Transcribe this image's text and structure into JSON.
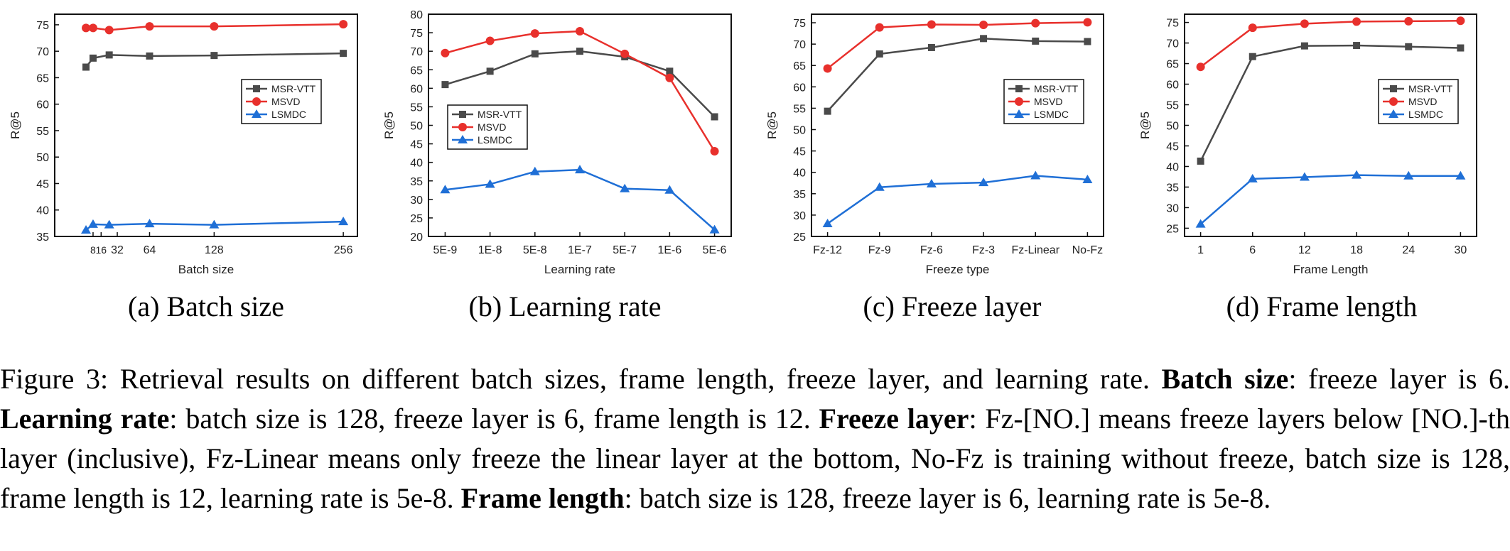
{
  "figure": {
    "subcaptions": [
      "(a) Batch size",
      "(b) Learning rate",
      "(c) Freeze layer",
      "(d) Frame length"
    ],
    "caption": [
      {
        "text": "Figure 3: Retrieval results on different batch sizes, frame length, freeze layer, and learning rate. ",
        "bold": false
      },
      {
        "text": "Batch size",
        "bold": true
      },
      {
        "text": ": freeze layer is 6. ",
        "bold": false
      },
      {
        "text": "Learning rate",
        "bold": true
      },
      {
        "text": ": batch size is 128, freeze layer is 6, frame length is 12. ",
        "bold": false
      },
      {
        "text": "Freeze layer",
        "bold": true
      },
      {
        "text": ": Fz-[NO.] means freeze layers below [NO.]-th layer (inclusive), Fz-Linear means only freeze the linear layer at the bottom, No-Fz is training without freeze, batch size is 128, frame length is 12, learning rate is 5e-8. ",
        "bold": false
      },
      {
        "text": "Frame length",
        "bold": true
      },
      {
        "text": ": batch size is 128, freeze layer is 6, learning rate is 5e-8.",
        "bold": false
      }
    ]
  },
  "colors": {
    "MSR-VTT": "#4a4a4a",
    "MSVD": "#e8302c",
    "LSMDC": "#1f6fd6"
  },
  "chart_data": [
    {
      "type": "line",
      "xscale": "numeric",
      "xlabel": "Batch size",
      "ylabel": "R@5",
      "xlim": [
        -30,
        270
      ],
      "ylim": [
        35,
        77
      ],
      "xticks": [
        8,
        16,
        32,
        64,
        128,
        256
      ],
      "xtick_labels": [
        "8",
        "16",
        "32",
        "64",
        "128",
        "256"
      ],
      "yticks": [
        35,
        40,
        45,
        50,
        55,
        60,
        65,
        70,
        75
      ],
      "legend_position": "right",
      "x": [
        1,
        8,
        24,
        64,
        128,
        256
      ],
      "series": [
        {
          "name": "MSR-VTT",
          "marker": "square",
          "values": [
            67.0,
            68.7,
            69.3,
            69.1,
            69.2,
            69.6
          ]
        },
        {
          "name": "MSVD",
          "marker": "circle",
          "values": [
            74.4,
            74.4,
            74.0,
            74.7,
            74.7,
            75.1
          ]
        },
        {
          "name": "LSMDC",
          "marker": "triangle",
          "values": [
            36.2,
            37.3,
            37.2,
            37.4,
            37.2,
            37.8
          ]
        }
      ]
    },
    {
      "type": "line",
      "xscale": "categorical",
      "xlabel": "Learning rate",
      "ylabel": "R@5",
      "ylim": [
        20,
        80
      ],
      "categories": [
        "5E-9",
        "1E-8",
        "5E-8",
        "1E-7",
        "5E-7",
        "1E-6",
        "5E-6"
      ],
      "yticks": [
        20,
        25,
        30,
        35,
        40,
        45,
        50,
        55,
        60,
        65,
        70,
        75,
        80
      ],
      "legend_position": "left",
      "series": [
        {
          "name": "MSR-VTT",
          "marker": "square",
          "values": [
            61.0,
            64.6,
            69.3,
            70.0,
            68.5,
            64.6,
            52.3
          ]
        },
        {
          "name": "MSVD",
          "marker": "circle",
          "values": [
            69.5,
            72.8,
            74.8,
            75.4,
            69.3,
            62.8,
            43.0
          ]
        },
        {
          "name": "LSMDC",
          "marker": "triangle",
          "values": [
            32.6,
            34.1,
            37.5,
            38.0,
            32.9,
            32.5,
            21.8
          ]
        }
      ]
    },
    {
      "type": "line",
      "xscale": "categorical",
      "xlabel": "Freeze type",
      "ylabel": "R@5",
      "ylim": [
        25,
        77
      ],
      "categories": [
        "Fz-12",
        "Fz-9",
        "Fz-6",
        "Fz-3",
        "Fz-Linear",
        "No-Fz"
      ],
      "yticks": [
        25,
        30,
        35,
        40,
        45,
        50,
        55,
        60,
        65,
        70,
        75
      ],
      "legend_position": "right",
      "series": [
        {
          "name": "MSR-VTT",
          "marker": "square",
          "values": [
            54.3,
            67.7,
            69.2,
            71.3,
            70.7,
            70.6
          ]
        },
        {
          "name": "MSVD",
          "marker": "circle",
          "values": [
            64.3,
            73.9,
            74.6,
            74.5,
            74.9,
            75.1
          ]
        },
        {
          "name": "LSMDC",
          "marker": "triangle",
          "values": [
            28.0,
            36.5,
            37.3,
            37.6,
            39.2,
            38.3
          ]
        }
      ]
    },
    {
      "type": "line",
      "xscale": "categorical",
      "xlabel": "Frame Length",
      "ylabel": "R@5",
      "ylim": [
        23,
        77
      ],
      "categories": [
        "1",
        "6",
        "12",
        "18",
        "24",
        "30"
      ],
      "yticks": [
        25,
        30,
        35,
        40,
        45,
        50,
        55,
        60,
        65,
        70,
        75
      ],
      "legend_position": "right",
      "series": [
        {
          "name": "MSR-VTT",
          "marker": "square",
          "values": [
            41.3,
            66.7,
            69.3,
            69.4,
            69.1,
            68.8
          ]
        },
        {
          "name": "MSVD",
          "marker": "circle",
          "values": [
            64.2,
            73.7,
            74.7,
            75.2,
            75.3,
            75.4
          ]
        },
        {
          "name": "LSMDC",
          "marker": "triangle",
          "values": [
            26.0,
            37.0,
            37.4,
            37.9,
            37.7,
            37.7
          ]
        }
      ]
    }
  ]
}
